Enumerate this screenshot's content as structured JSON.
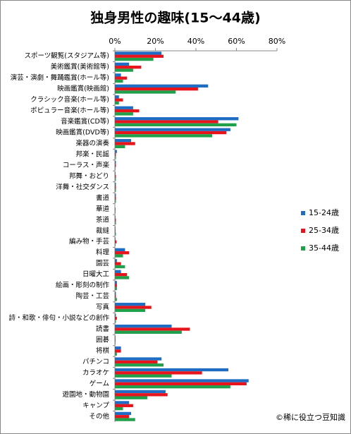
{
  "chart_data": {
    "type": "hbar",
    "title": "独身男性の趣味(15～44歳)",
    "credit": "©稀に役立つ豆知識",
    "categories": [
      "スポーツ観覧(スタジアム等)",
      "美術鑑賞(美術館等)",
      "演芸・演劇・舞踊鑑賞(ホール等)",
      "映画鑑賞(映画館)",
      "クラシック音楽(ホール等)",
      "ポピュラー音楽(ホール等)",
      "音楽鑑賞(CD等)",
      "映画鑑賞(DVD等)",
      "楽器の演奏",
      "邦楽・民謡",
      "コーラス・声楽",
      "邦舞・おどり",
      "洋舞・社交ダンス",
      "書道",
      "華道",
      "茶道",
      "裁縫",
      "編み物・手芸",
      "料理",
      "園芸",
      "日曜大工",
      "絵画・彫刻の制作",
      "陶芸・工芸",
      "写真",
      "詩・和歌・俳句・小説などの創作",
      "読書",
      "囲碁",
      "将棋",
      "パチンコ",
      "カラオケ",
      "ゲーム",
      "遊園地・動物園",
      "キャンプ",
      "その他"
    ],
    "series": [
      {
        "name": "15-24歳",
        "color": "#1f6cc4",
        "values": [
          23,
          7,
          3,
          46,
          2,
          9,
          61,
          57,
          8,
          1,
          0.5,
          0.3,
          0.5,
          0.5,
          0,
          0.3,
          0.3,
          0.3,
          5,
          1,
          3,
          1,
          0.5,
          15,
          0.5,
          28,
          0.3,
          3,
          23,
          56,
          66,
          25,
          7,
          8
        ]
      },
      {
        "name": "25-34歳",
        "color": "#e8141c",
        "values": [
          24,
          13,
          6,
          41,
          4,
          12,
          51,
          55,
          10,
          0.5,
          0.5,
          0.5,
          0.5,
          0.5,
          0.3,
          0.5,
          0.3,
          0.8,
          7,
          3,
          6,
          1,
          0.5,
          18,
          1,
          37,
          0.3,
          3,
          21,
          43,
          65,
          26,
          9,
          7
        ]
      },
      {
        "name": "35-44歳",
        "color": "#21a04b",
        "values": [
          19,
          9,
          4,
          30,
          2,
          9,
          60,
          48,
          5,
          0.5,
          0.3,
          0.5,
          0.5,
          0.5,
          0.3,
          0.5,
          0.5,
          0.3,
          4,
          5,
          7,
          1,
          1,
          15,
          0.5,
          33,
          0.3,
          1,
          24,
          28,
          57,
          16,
          4,
          10
        ]
      }
    ],
    "xlim": [
      0,
      80
    ],
    "xticks": [
      {
        "value": 0,
        "label": "0%"
      },
      {
        "value": 20,
        "label": "20%"
      },
      {
        "value": 40,
        "label": "40%"
      },
      {
        "value": 60,
        "label": "60%"
      },
      {
        "value": 80,
        "label": "80%"
      }
    ],
    "legend": "right"
  }
}
